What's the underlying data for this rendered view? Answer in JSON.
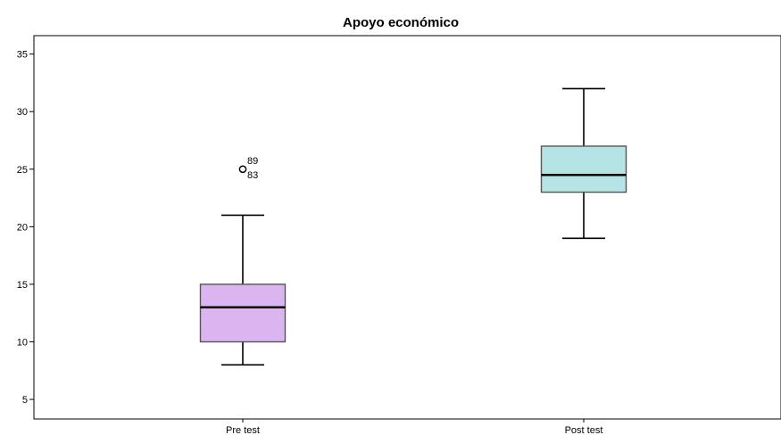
{
  "chart_data": {
    "type": "boxplot",
    "title": "Apoyo económico",
    "xlabel": "",
    "ylabel": "",
    "ylim": [
      3.3,
      36.6
    ],
    "yticks": [
      5,
      10,
      15,
      20,
      25,
      30,
      35
    ],
    "grid": false,
    "categories": [
      "Pre test",
      "Post test"
    ],
    "boxes": [
      {
        "category": "Pre test",
        "whisker_low": 8,
        "q1": 10,
        "median": 13,
        "q3": 15,
        "whisker_high": 21,
        "color": "#dcb4f0",
        "outliers": [
          {
            "value": 25,
            "labels": [
              "89",
              "83"
            ]
          }
        ]
      },
      {
        "category": "Post test",
        "whisker_low": 19,
        "q1": 23,
        "median": 24.5,
        "q3": 27,
        "whisker_high": 32,
        "color": "#b4e4e6",
        "outliers": []
      }
    ]
  }
}
